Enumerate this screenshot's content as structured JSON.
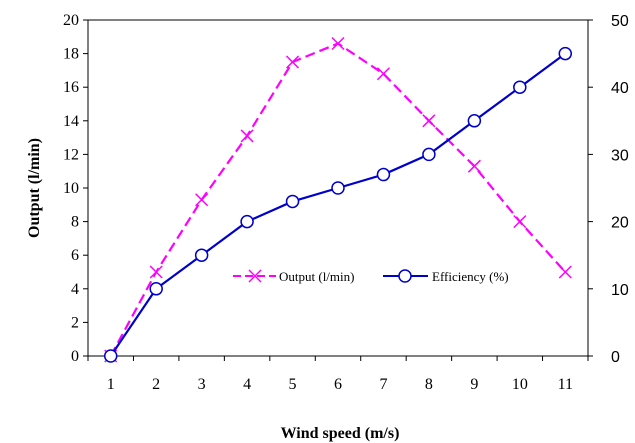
{
  "chart_data": {
    "type": "line",
    "xlabel": "Wind speed (m/s)",
    "ylabel": "Output (l/min)",
    "ylim_left": [
      0,
      20
    ],
    "yticks_left": [
      "0",
      "2",
      "4",
      "6",
      "8",
      "10",
      "12",
      "14",
      "16",
      "18",
      "20"
    ],
    "ylim_right": [
      0,
      50
    ],
    "yticks_right": [
      "0",
      "10",
      "20",
      "30",
      "40",
      "50"
    ],
    "categories": [
      "1",
      "2",
      "3",
      "4",
      "5",
      "6",
      "7",
      "8",
      "9",
      "10",
      "11"
    ],
    "legend_position": "center-right, inside plot",
    "grid": false,
    "series": [
      {
        "name": "Output (l/min)",
        "axis": "left",
        "color": "#ff00ff",
        "marker": "x",
        "dash": true,
        "values": [
          0,
          5,
          9.3,
          13.1,
          17.5,
          18.6,
          16.8,
          14,
          11.3,
          8,
          5
        ]
      },
      {
        "name": "Efficiency (%)",
        "axis": "right",
        "color": "#0000cc",
        "marker": "circle",
        "dash": false,
        "values": [
          0,
          10,
          15,
          20,
          23,
          25,
          27,
          30,
          35,
          40,
          45
        ]
      }
    ]
  }
}
